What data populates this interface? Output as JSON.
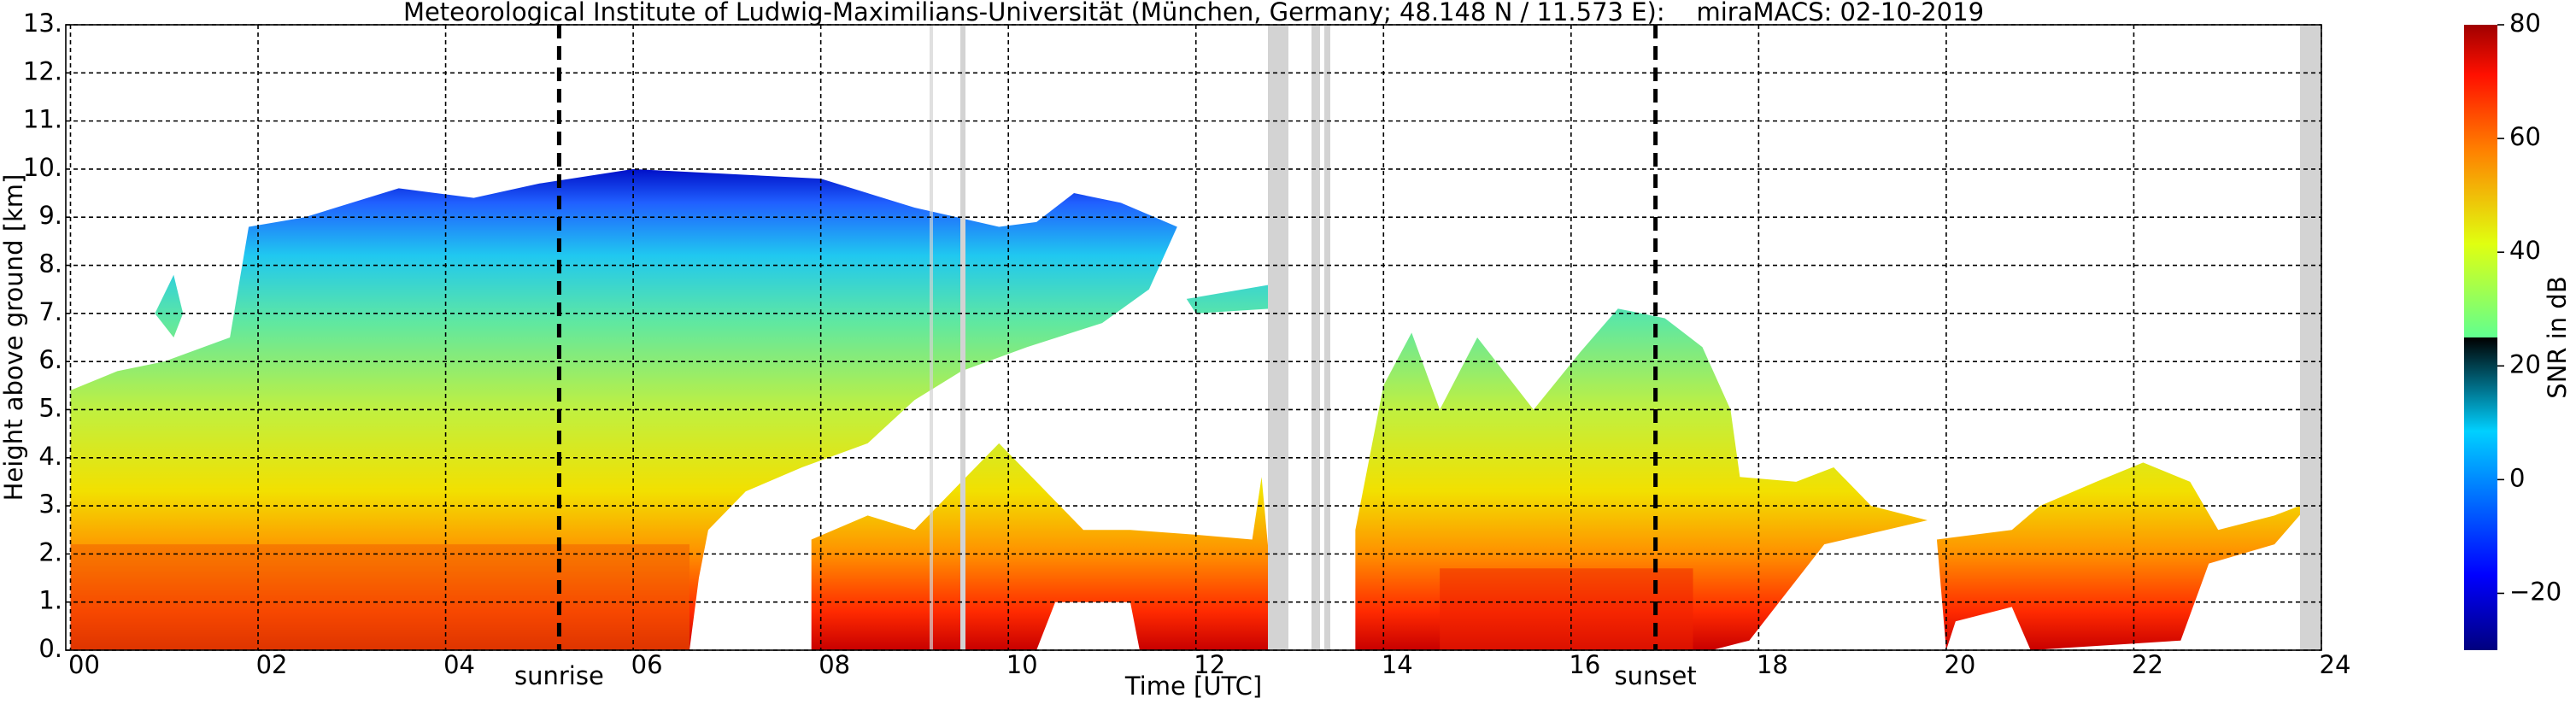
{
  "chart_data": {
    "type": "heatmap",
    "title": "Meteorological Institute of Ludwig-Maximilians-Universität (München, Germany; 48.148 N / 11.573 E):    miraMACS: 02-10-2019",
    "x_label": "Time [UTC]",
    "y_label": "Height above ground [km]",
    "xlim": [
      -0.05,
      24
    ],
    "xticks": [
      {
        "value": 0,
        "label": "00"
      },
      {
        "value": 2,
        "label": "02"
      },
      {
        "value": 4,
        "label": "04"
      },
      {
        "value": 6,
        "label": "06"
      },
      {
        "value": 8,
        "label": "08"
      },
      10,
      12,
      14,
      16,
      18,
      20,
      22,
      24
    ],
    "ylim": [
      0,
      13
    ],
    "yticks": [
      {
        "value": 0,
        "label": "0."
      },
      {
        "value": 1,
        "label": "1."
      },
      {
        "value": 2,
        "label": "2."
      },
      {
        "value": 3,
        "label": "3."
      },
      {
        "value": 4,
        "label": "4."
      },
      {
        "value": 5,
        "label": "5."
      },
      {
        "value": 6,
        "label": "6."
      },
      {
        "value": 7,
        "label": "7."
      },
      {
        "value": 8,
        "label": "8."
      },
      {
        "value": 9,
        "label": "9."
      },
      {
        "value": 10,
        "label": "10."
      },
      {
        "value": 11,
        "label": "11."
      },
      {
        "value": 12,
        "label": "12."
      },
      {
        "value": 13,
        "label": "13."
      }
    ],
    "grid": true,
    "colorbar": {
      "label": "SNR in dB",
      "lim": [
        -30,
        80
      ],
      "ticks": [
        {
          "value": -20,
          "label": "−20"
        },
        0,
        20,
        40,
        60,
        80
      ]
    },
    "annotations": [
      {
        "label": "sunrise",
        "x": 5.21
      },
      {
        "label": "sunset",
        "x": 16.9
      }
    ]
  }
}
